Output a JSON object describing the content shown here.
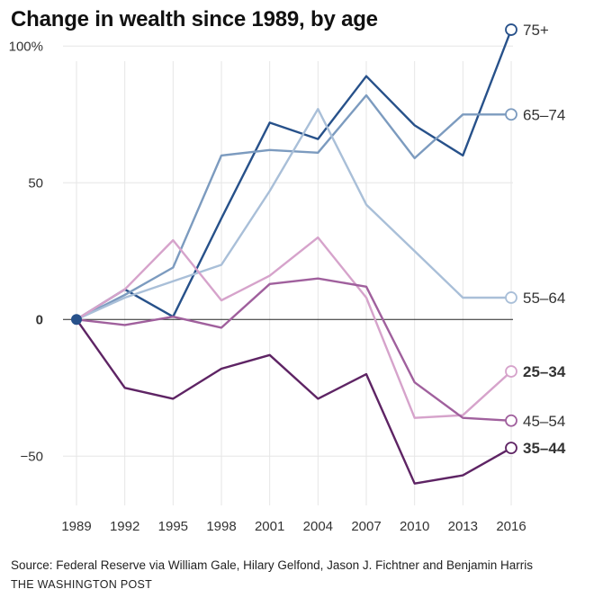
{
  "chart_data": {
    "type": "line",
    "title": "Change in wealth since 1989, by age",
    "xlabel": "",
    "ylabel": "",
    "x": [
      1989,
      1992,
      1995,
      1998,
      2001,
      2004,
      2007,
      2010,
      2013,
      2016
    ],
    "x_tick_labels": [
      "1989",
      "1992",
      "1995",
      "1998",
      "2001",
      "2004",
      "2007",
      "2010",
      "2013",
      "2016"
    ],
    "y_ticks": [
      -50,
      0,
      50,
      100
    ],
    "y_tick_labels": [
      "−50",
      "0",
      "50",
      "100%"
    ],
    "ylim": [
      -68,
      107
    ],
    "grid": true,
    "legend": "direct labels at line ends",
    "series": [
      {
        "name": "75+",
        "color": "#27518a",
        "width": 2.4,
        "bold": false,
        "values": [
          0,
          11,
          1,
          37,
          72,
          66,
          89,
          71,
          60,
          106
        ]
      },
      {
        "name": "65–74",
        "color": "#7c9bbf",
        "width": 2.4,
        "bold": false,
        "values": [
          0,
          9,
          19,
          60,
          62,
          61,
          82,
          59,
          75,
          75
        ]
      },
      {
        "name": "55–64",
        "color": "#a9bfd8",
        "width": 2.4,
        "bold": false,
        "values": [
          0,
          8,
          14,
          20,
          47,
          77,
          42,
          25,
          8,
          8
        ]
      },
      {
        "name": "25–34",
        "color": "#d6a3cb",
        "width": 2.4,
        "bold": true,
        "values": [
          0,
          11,
          29,
          7,
          16,
          30,
          8,
          -36,
          -35,
          -19
        ]
      },
      {
        "name": "45–54",
        "color": "#a0609d",
        "width": 2.4,
        "bold": false,
        "values": [
          0,
          -2,
          1,
          -3,
          13,
          15,
          12,
          -23,
          -36,
          -37
        ]
      },
      {
        "name": "35–44",
        "color": "#5e2464",
        "width": 2.4,
        "bold": true,
        "values": [
          0,
          -25,
          -29,
          -18,
          -13,
          -29,
          -20,
          -60,
          -57,
          -47
        ]
      }
    ]
  },
  "source": "Source: Federal Reserve via William Gale, Hilary Gelfond, Jason J. Fichtner and Benjamin Harris",
  "credit": "THE WASHINGTON POST"
}
